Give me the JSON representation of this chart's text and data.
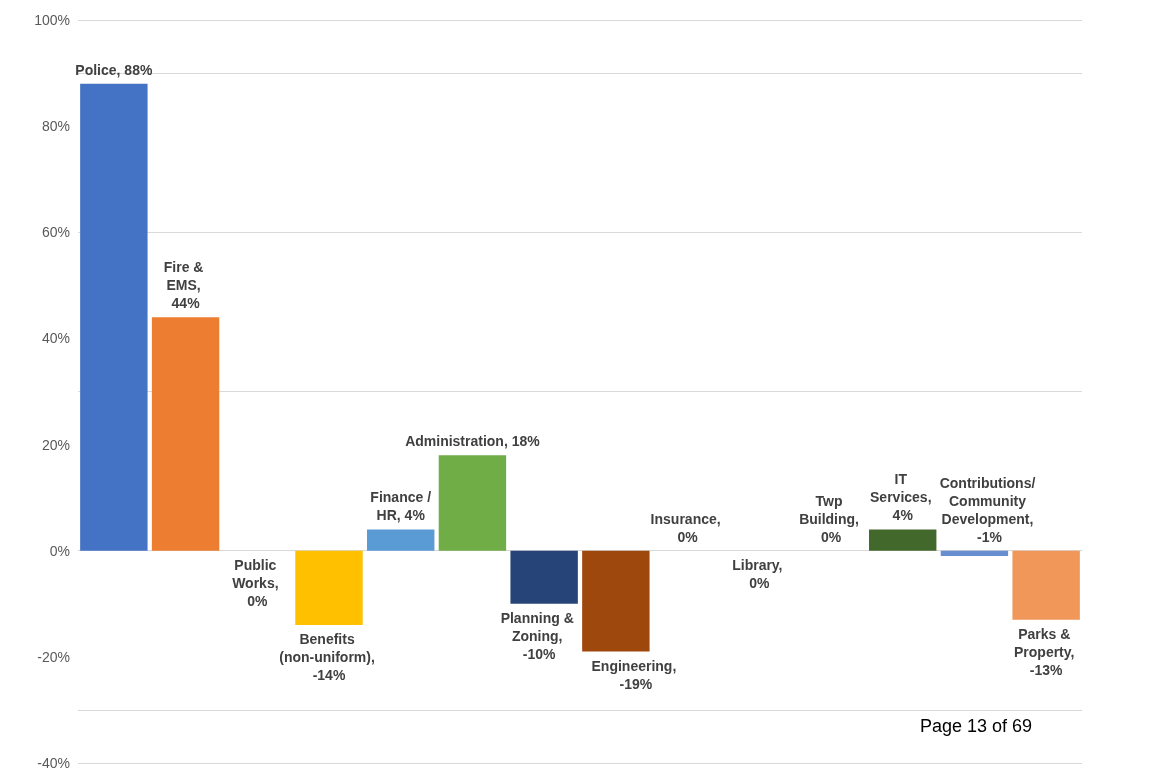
{
  "chart_data": {
    "type": "bar",
    "categories": [
      null,
      null,
      null,
      null,
      null,
      null,
      null,
      null,
      null,
      null,
      null,
      null,
      null,
      null
    ],
    "values": [
      88,
      44,
      0,
      -14,
      4,
      18,
      -10,
      -19,
      0,
      0,
      0,
      4,
      -1,
      -13
    ],
    "colors": [
      "#4472c4",
      "#ed7d31",
      "#a5a5a5",
      "#ffc000",
      "#5b9bd5",
      "#70ad47",
      "#264478",
      "#9e480e",
      "#636363",
      "#997300",
      "#255e91",
      "#43682b",
      "#698ed0",
      "#f1975a"
    ],
    "value_labels": [
      "Police, 88%",
      "Fire & EMS, 44%",
      "Public Works, 0%",
      "Benefits (non-uniform), -14%",
      "Finance /HR, 4%",
      "Administration, 18%",
      "Planning & Zoning, -10%",
      "Engineering, -19%",
      "Insurance, 0%",
      "Library, 0%",
      "Twp Building, 0%",
      "IT Services, 4%",
      "Contributions/ Community Development, -1%",
      "Parks & Property, -13%"
    ],
    "ylim": [
      -40,
      100
    ],
    "yticks": [
      {
        "value": -40,
        "label": "-40%"
      },
      {
        "value": -20,
        "label": "-20%"
      },
      {
        "value": 0,
        "label": "0%"
      },
      {
        "value": 20,
        "label": "20%"
      },
      {
        "value": 40,
        "label": "40%"
      },
      {
        "value": 60,
        "label": "60%"
      },
      {
        "value": 80,
        "label": "80%"
      },
      {
        "value": 100,
        "label": "100%"
      }
    ],
    "grid": "y",
    "tick_labels": "y",
    "annotations": [
      "Page 13 of 69"
    ]
  }
}
